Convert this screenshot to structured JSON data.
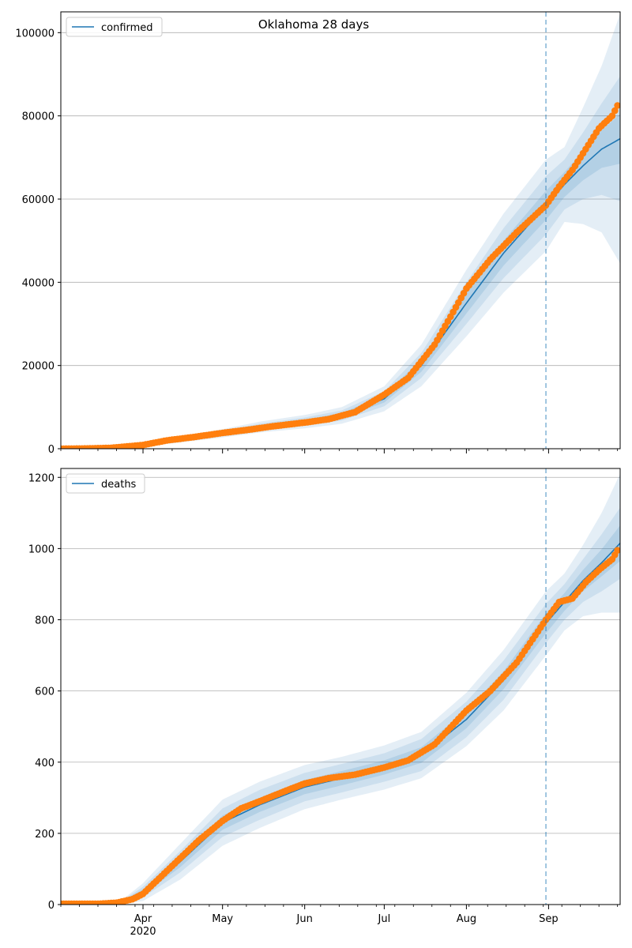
{
  "figure": {
    "title": "Oklahoma 28 days",
    "x_axis": {
      "start": "2020-03-01",
      "end": "2020-09-28",
      "month_ticks": [
        {
          "date": "2020-04-01",
          "label": "Apr",
          "sublabel": "2020"
        },
        {
          "date": "2020-05-01",
          "label": "May",
          "sublabel": ""
        },
        {
          "date": "2020-06-01",
          "label": "Jun",
          "sublabel": ""
        },
        {
          "date": "2020-07-01",
          "label": "Jul",
          "sublabel": ""
        },
        {
          "date": "2020-08-01",
          "label": "Aug",
          "sublabel": ""
        },
        {
          "date": "2020-09-01",
          "label": "Sep",
          "sublabel": ""
        }
      ]
    },
    "forecast_start": "2020-08-31",
    "colors": {
      "model_line": "#1f77b4",
      "observed": "#ff7f0e",
      "band": "#1f77b4",
      "grid": "#b0b0b0",
      "vline": "#1f77b4"
    }
  },
  "chart_data": [
    {
      "type": "line",
      "legend": "confirmed",
      "legend_position": "top-left",
      "grid": "horizontal",
      "ylim": [
        0,
        105000
      ],
      "yticks": [
        0,
        20000,
        40000,
        60000,
        80000,
        100000
      ],
      "model_x": [
        "2020-03-01",
        "2020-03-15",
        "2020-04-01",
        "2020-04-15",
        "2020-05-01",
        "2020-05-15",
        "2020-06-01",
        "2020-06-15",
        "2020-07-01",
        "2020-07-15",
        "2020-08-01",
        "2020-08-15",
        "2020-08-31",
        "2020-09-07",
        "2020-09-14",
        "2020-09-21",
        "2020-09-28"
      ],
      "model_y": [
        50,
        100,
        800,
        2200,
        3700,
        5200,
        6500,
        8000,
        12000,
        20000,
        35000,
        47000,
        58500,
        63500,
        68000,
        72000,
        74500
      ],
      "band_inner_halfwidth": [
        0,
        0,
        100,
        200,
        300,
        400,
        500,
        600,
        900,
        1500,
        2500,
        3000,
        3500,
        3000,
        3500,
        4500,
        6000
      ],
      "band_mid_halfwidth": [
        0,
        0,
        200,
        400,
        600,
        800,
        1000,
        1200,
        1800,
        3000,
        5000,
        6000,
        7000,
        6000,
        8000,
        11000,
        15000
      ],
      "band_outer_halfwidth": [
        0,
        0,
        300,
        700,
        1000,
        1300,
        1600,
        2000,
        3000,
        5000,
        8000,
        9500,
        11000,
        9000,
        14000,
        20000,
        30000
      ],
      "observed_x": [
        "2020-03-01",
        "2020-03-10",
        "2020-03-20",
        "2020-04-01",
        "2020-04-10",
        "2020-04-20",
        "2020-05-01",
        "2020-05-10",
        "2020-05-20",
        "2020-06-01",
        "2020-06-10",
        "2020-06-20",
        "2020-07-01",
        "2020-07-10",
        "2020-07-20",
        "2020-08-01",
        "2020-08-10",
        "2020-08-20",
        "2020-08-31",
        "2020-09-05",
        "2020-09-10",
        "2020-09-15",
        "2020-09-20",
        "2020-09-25",
        "2020-09-27"
      ],
      "observed_y": [
        0,
        50,
        200,
        900,
        2000,
        2800,
        3800,
        4500,
        5400,
        6300,
        7100,
        8800,
        13000,
        17000,
        25000,
        38500,
        45500,
        52000,
        58500,
        63000,
        67000,
        72000,
        77000,
        80000,
        82500
      ]
    },
    {
      "type": "line",
      "legend": "deaths",
      "legend_position": "top-left",
      "grid": "horizontal",
      "ylim": [
        0,
        1225
      ],
      "yticks": [
        0,
        200,
        400,
        600,
        800,
        1000,
        1200
      ],
      "model_x": [
        "2020-03-01",
        "2020-03-15",
        "2020-03-25",
        "2020-04-01",
        "2020-04-15",
        "2020-05-01",
        "2020-05-15",
        "2020-06-01",
        "2020-06-15",
        "2020-07-01",
        "2020-07-15",
        "2020-08-01",
        "2020-08-15",
        "2020-08-31",
        "2020-09-07",
        "2020-09-14",
        "2020-09-21",
        "2020-09-28"
      ],
      "model_y": [
        0,
        0,
        10,
        35,
        120,
        230,
        280,
        330,
        355,
        385,
        420,
        520,
        630,
        790,
        850,
        910,
        960,
        1015
      ],
      "band_inner_halfwidth": [
        0,
        0,
        3,
        8,
        15,
        20,
        20,
        20,
        20,
        20,
        22,
        25,
        25,
        28,
        25,
        30,
        38,
        50
      ],
      "band_mid_halfwidth": [
        0,
        0,
        5,
        15,
        30,
        40,
        42,
        40,
        40,
        40,
        45,
        50,
        55,
        55,
        50,
        60,
        80,
        100
      ],
      "band_outer_halfwidth": [
        0,
        0,
        8,
        25,
        50,
        65,
        65,
        62,
        60,
        62,
        65,
        75,
        85,
        90,
        80,
        100,
        140,
        195
      ],
      "observed_x": [
        "2020-03-01",
        "2020-03-15",
        "2020-03-22",
        "2020-03-28",
        "2020-04-01",
        "2020-04-08",
        "2020-04-15",
        "2020-04-22",
        "2020-05-01",
        "2020-05-08",
        "2020-05-15",
        "2020-05-25",
        "2020-06-01",
        "2020-06-10",
        "2020-06-20",
        "2020-07-01",
        "2020-07-10",
        "2020-07-20",
        "2020-08-01",
        "2020-08-10",
        "2020-08-20",
        "2020-08-31",
        "2020-09-05",
        "2020-09-10",
        "2020-09-15",
        "2020-09-20",
        "2020-09-25",
        "2020-09-27"
      ],
      "observed_y": [
        2,
        2,
        5,
        15,
        30,
        80,
        130,
        180,
        235,
        270,
        290,
        320,
        340,
        355,
        365,
        385,
        405,
        450,
        545,
        600,
        680,
        800,
        850,
        860,
        905,
        940,
        970,
        995
      ]
    }
  ]
}
